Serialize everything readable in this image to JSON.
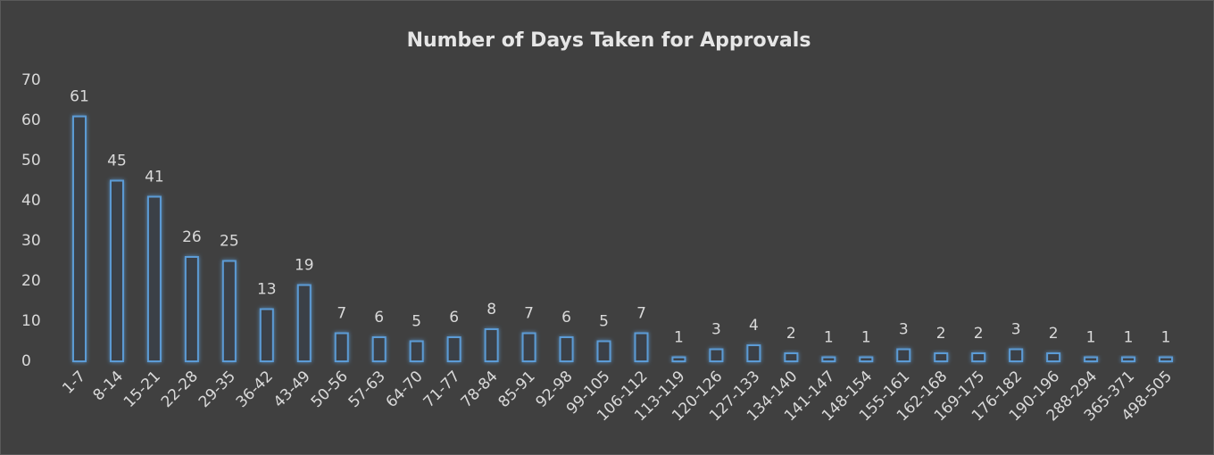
{
  "chart_data": {
    "type": "bar",
    "title": "Number of Days Taken for Approvals",
    "categories": [
      "1-7",
      "8-14",
      "15-21",
      "22-28",
      "29-35",
      "36-42",
      "43-49",
      "50-56",
      "57-63",
      "64-70",
      "71-77",
      "78-84",
      "85-91",
      "92-98",
      "99-105",
      "106-112",
      "113-119",
      "120-126",
      "127-133",
      "134-140",
      "141-147",
      "148-154",
      "155-161",
      "162-168",
      "169-175",
      "176-182",
      "190-196",
      "288-294",
      "365-371",
      "498-505"
    ],
    "values": [
      61,
      45,
      41,
      26,
      25,
      13,
      19,
      7,
      6,
      5,
      6,
      8,
      7,
      6,
      5,
      7,
      1,
      3,
      4,
      2,
      1,
      1,
      3,
      2,
      2,
      3,
      2,
      1,
      1,
      1
    ],
    "color": "#5b9bd5",
    "ylim": [
      0,
      70
    ],
    "yticks": [
      0,
      10,
      20,
      30,
      40,
      50,
      60,
      70
    ],
    "grid": false
  }
}
